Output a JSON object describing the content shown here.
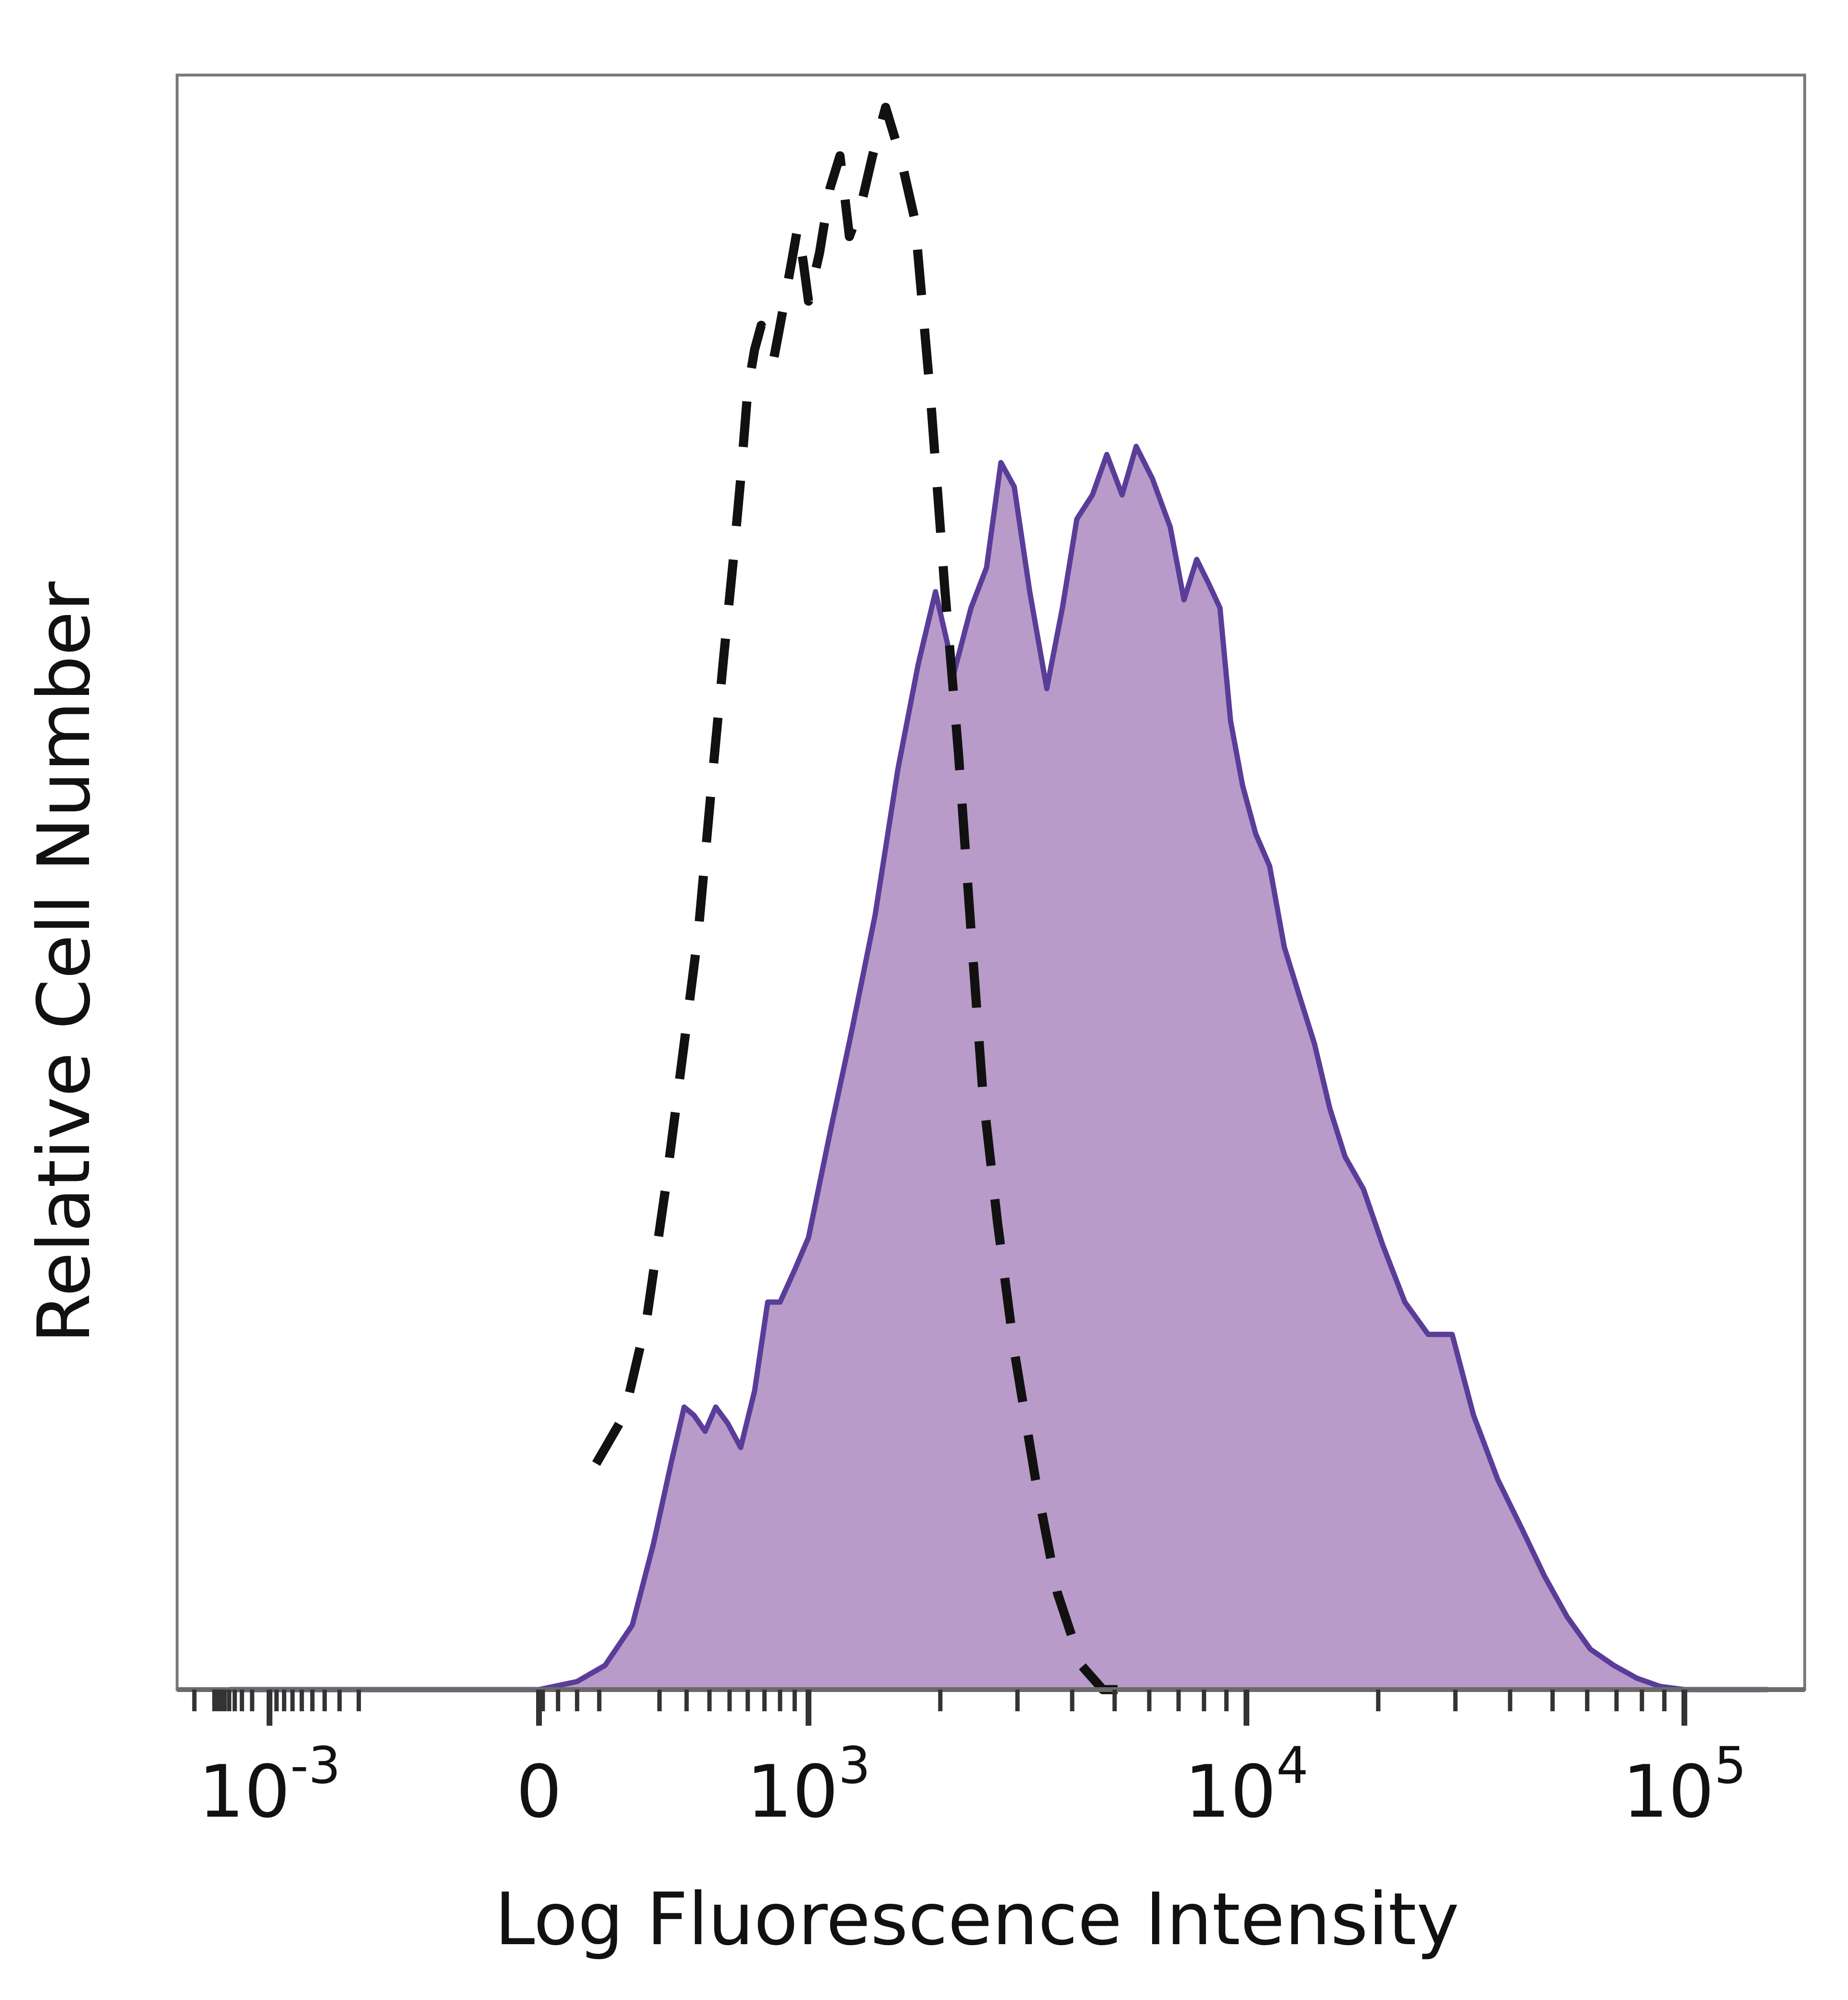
{
  "chart_data": {
    "type": "area",
    "xlabel": "Log Fluorescence Intensity",
    "ylabel": "Relative Cell Number",
    "x_scale": "biexponential",
    "x_ticks": [
      {
        "value": -0.001,
        "base": "10",
        "exp": "-3"
      },
      {
        "value": 0,
        "base": "0",
        "exp": ""
      },
      {
        "value": 1000,
        "base": "10",
        "exp": "3"
      },
      {
        "value": 10000,
        "base": "10",
        "exp": "4"
      },
      {
        "value": 100000,
        "base": "10",
        "exp": "5"
      }
    ],
    "y_ticks_shown": false,
    "ylim": [
      0,
      100
    ],
    "grid": false,
    "legend": "none",
    "series": [
      {
        "style": "filled",
        "fill_color": "#b89bc8",
        "line_color": "#5a3d99",
        "x": [
          -0.005,
          -0.003,
          -0.001,
          -0.0003,
          -5e-05,
          0,
          20,
          60,
          120,
          180,
          240,
          290,
          330,
          380,
          430,
          490,
          560,
          640,
          720,
          800,
          900,
          1000,
          1120,
          1260,
          1420,
          1600,
          1780,
          1950,
          2150,
          2350,
          2550,
          2750,
          2950,
          3200,
          3500,
          3800,
          4100,
          4450,
          4800,
          5200,
          5600,
          6100,
          6700,
          7200,
          7700,
          8200,
          8700,
          9200,
          9800,
          10500,
          11300,
          12200,
          13200,
          14300,
          15500,
          16800,
          18500,
          20500,
          23000,
          26000,
          29500,
          33000,
          37500,
          42500,
          48000,
          54000,
          61000,
          69000,
          78000,
          88000,
          100000,
          115000,
          135000,
          155000
        ],
        "y": [
          0,
          0,
          0,
          0,
          0,
          0,
          0.5,
          1.5,
          4,
          9,
          14,
          17.5,
          17,
          16,
          17.5,
          16.5,
          15,
          18.5,
          24,
          24,
          26,
          28,
          34.5,
          41,
          48,
          57,
          63.5,
          68,
          63,
          67,
          69.5,
          76,
          74.5,
          68,
          62,
          67,
          72.5,
          74,
          76.5,
          74,
          77,
          75,
          72,
          67.5,
          70,
          68.5,
          67,
          60,
          56,
          53,
          51,
          46,
          43,
          40,
          36,
          33,
          31,
          27.5,
          24,
          22,
          22,
          17,
          13,
          10,
          7,
          4.5,
          2.5,
          1.5,
          0.7,
          0.2,
          0,
          0,
          0,
          0
        ]
      },
      {
        "style": "dashed",
        "line_color": "#111111",
        "x": [
          45,
          100,
          160,
          220,
          290,
          350,
          410,
          470,
          520,
          560,
          600,
          640,
          680,
          720,
          760,
          800,
          840,
          880,
          920,
          960,
          1000,
          1060,
          1120,
          1180,
          1240,
          1320,
          1400,
          1500,
          1620,
          1750,
          1900,
          2050,
          2200,
          2350,
          2500,
          2700,
          2950,
          3300,
          3700,
          4200,
          4700,
          5200
        ],
        "y": [
          14,
          17,
          23,
          31,
          40,
          47,
          56,
          64,
          70,
          75,
          80.5,
          83,
          84.5,
          83.5,
          82.5,
          84.5,
          86.5,
          88.5,
          90.5,
          88.5,
          86,
          89,
          93,
          95,
          90,
          92,
          95,
          98,
          95,
          91,
          80,
          68,
          58,
          47,
          37,
          29,
          21,
          13,
          6,
          1.5,
          0,
          0
        ]
      }
    ]
  }
}
